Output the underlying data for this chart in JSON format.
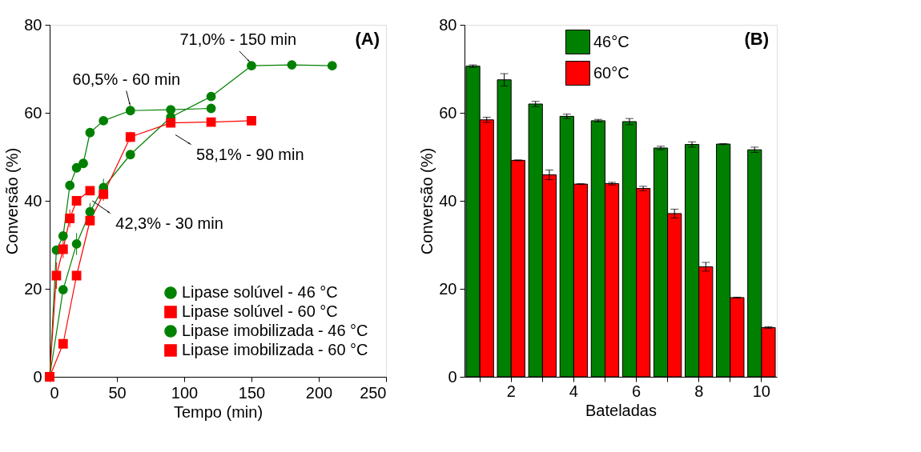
{
  "chart_data": [
    {
      "type": "line",
      "title": "(A)",
      "xlabel": "Tempo (min)",
      "ylabel": "Conversão (%)",
      "xlim": [
        0,
        250
      ],
      "xticks": [
        0,
        50,
        100,
        150,
        200,
        250
      ],
      "ylim": [
        0,
        80
      ],
      "yticks": [
        0,
        20,
        40,
        60,
        80
      ],
      "grid": false,
      "legend": "bottom right",
      "line_style": "solid",
      "series": [
        {
          "name": "Lipase solúvel - 46 °C",
          "color": "#008000",
          "marker": "circle",
          "x": [
            0,
            5,
            10,
            15,
            20,
            25,
            30,
            40,
            60,
            90,
            120
          ],
          "values": [
            0,
            28.8,
            32,
            43.5,
            47.5,
            48.5,
            55.5,
            58.2,
            60.5,
            60.7,
            61
          ],
          "errors": [
            null,
            1,
            1,
            0.8,
            1,
            1,
            0.5,
            0.5,
            0.8,
            0.8,
            0.8
          ]
        },
        {
          "name": "Lipase solúvel - 60 °C",
          "color": "#ff0000",
          "marker": "square",
          "x": [
            0,
            5,
            10,
            15,
            20,
            30
          ],
          "values": [
            0,
            23,
            29,
            36,
            40,
            42.3
          ],
          "errors": [
            null,
            3,
            2,
            2,
            1,
            0.8
          ]
        },
        {
          "name": "Lipase imobilizada - 46 °C",
          "color": "#008000",
          "marker": "circle",
          "x": [
            0,
            10,
            20,
            30,
            40,
            60,
            90,
            120,
            150,
            180,
            210
          ],
          "values": [
            0,
            19.8,
            30.2,
            37.5,
            43,
            50.5,
            59,
            63.7,
            70.7,
            70.9,
            70.7
          ],
          "errors": [
            null,
            null,
            2.5,
            2,
            2,
            1,
            1,
            0.5,
            0.5,
            0.3,
            0.3
          ]
        },
        {
          "name": "Lipase imobilizada - 60 °C",
          "color": "#ff0000",
          "marker": "square",
          "x": [
            0,
            10,
            20,
            30,
            40,
            60,
            90,
            120,
            150
          ],
          "values": [
            0,
            7.5,
            23,
            35.5,
            41.5,
            54.5,
            57.7,
            57.9,
            58.2
          ],
          "errors": [
            null,
            null,
            1,
            1,
            1.5,
            1.2,
            0.5,
            0.5,
            0.5
          ]
        }
      ],
      "annotations": [
        {
          "text": "71,0% - 150 min",
          "x": 150,
          "y": 71
        },
        {
          "text": "60,5% - 60 min",
          "x": 60,
          "y": 60.5
        },
        {
          "text": "58,1% - 90 min",
          "x": 90,
          "y": 58.1
        },
        {
          "text": "42,3% - 30 min",
          "x": 30,
          "y": 42.3
        }
      ]
    },
    {
      "type": "bar",
      "title": "(B)",
      "xlabel": "Bateladas",
      "ylabel": "Conversão (%)",
      "categories": [
        null,
        "2",
        null,
        "4",
        null,
        "6",
        null,
        "8",
        null,
        "10"
      ],
      "ylim": [
        0,
        80
      ],
      "yticks": [
        0,
        20,
        40,
        60,
        80
      ],
      "grid": false,
      "legend": "top",
      "series": [
        {
          "name": "46°C",
          "color": "#008000",
          "values": [
            70.6,
            67.5,
            62,
            59.2,
            58.2,
            58,
            52,
            52.8,
            52.9,
            51.6
          ],
          "errors": [
            0.3,
            1.4,
            0.6,
            0.5,
            0.3,
            0.7,
            0.4,
            0.6,
            0.1,
            0.6
          ]
        },
        {
          "name": "60°C",
          "color": "#ff0000",
          "values": [
            58.4,
            49.2,
            45.9,
            43.8,
            43.9,
            42.8,
            37.1,
            25,
            18,
            11.2
          ],
          "errors": [
            0.6,
            0.1,
            1.1,
            0.1,
            0.3,
            0.5,
            1,
            1,
            0.1,
            0.2
          ]
        }
      ]
    }
  ]
}
